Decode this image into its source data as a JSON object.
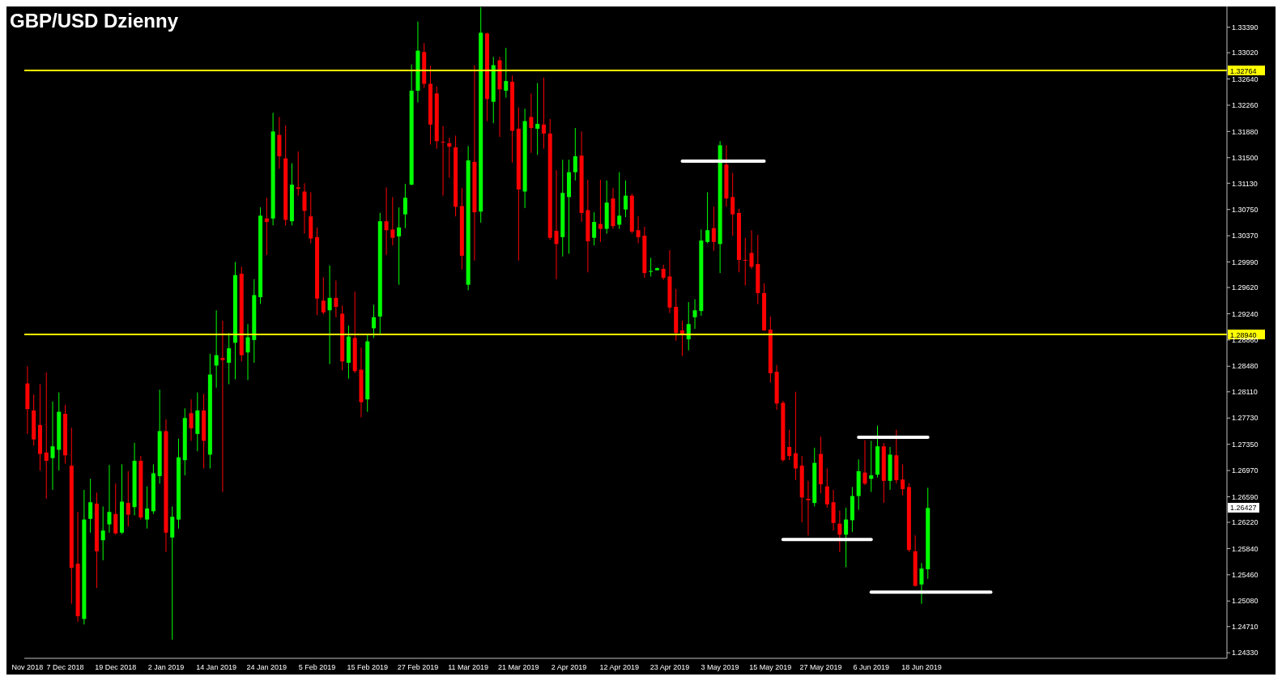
{
  "chart_data": {
    "type": "candlestick",
    "title": "GBP/USD Dzienny",
    "categories": [
      "Nov 2018",
      null,
      null,
      null,
      null,
      null,
      "7 Dec 2018",
      null,
      null,
      null,
      null,
      null,
      null,
      null,
      "19 Dec 2018",
      null,
      null,
      null,
      null,
      null,
      null,
      null,
      "2 Jan 2019",
      null,
      null,
      null,
      null,
      null,
      null,
      null,
      "14 Jan 2019",
      null,
      null,
      null,
      null,
      null,
      null,
      null,
      "24 Jan 2019",
      null,
      null,
      null,
      null,
      null,
      null,
      null,
      "5 Feb 2019",
      null,
      null,
      null,
      null,
      null,
      null,
      null,
      "15 Feb 2019",
      null,
      null,
      null,
      null,
      null,
      null,
      null,
      "27 Feb 2019",
      null,
      null,
      null,
      null,
      null,
      null,
      null,
      "11 Mar 2019",
      null,
      null,
      null,
      null,
      null,
      null,
      null,
      "21 Mar 2019",
      null,
      null,
      null,
      null,
      null,
      null,
      null,
      "2 Apr 2019",
      null,
      null,
      null,
      null,
      null,
      null,
      null,
      "12 Apr 2019",
      null,
      null,
      null,
      null,
      null,
      null,
      null,
      "23 Apr 2019",
      null,
      null,
      null,
      null,
      null,
      null,
      null,
      "3 May 2019",
      null,
      null,
      null,
      null,
      null,
      null,
      null,
      "15 May 2019",
      null,
      null,
      null,
      null,
      null,
      null,
      null,
      "27 May 2019",
      null,
      null,
      null,
      null,
      null,
      null,
      null,
      "6 Jun 2019",
      null,
      null,
      null,
      null,
      null,
      null,
      null,
      "18 Jun 2019",
      null,
      null,
      null,
      null,
      null,
      null,
      null,
      null,
      null,
      null,
      null,
      null,
      null,
      null,
      null,
      null,
      null,
      null,
      null,
      null,
      null,
      null,
      null,
      null,
      null,
      null,
      null,
      null,
      null,
      null,
      null,
      null,
      null,
      null,
      null,
      null,
      null,
      null,
      null,
      null,
      null,
      null,
      null,
      null,
      null,
      null,
      null,
      null
    ],
    "ohlc": [
      [
        1.2823,
        1.2848,
        1.275,
        1.2786
      ],
      [
        1.2784,
        1.2807,
        1.2733,
        1.2742
      ],
      [
        1.2763,
        1.2822,
        1.2697,
        1.2721
      ],
      [
        1.2723,
        1.2839,
        1.2656,
        1.2711
      ],
      [
        1.2715,
        1.2797,
        1.2669,
        1.2732
      ],
      [
        1.2727,
        1.281,
        1.2697,
        1.2782
      ],
      [
        1.2779,
        1.2792,
        1.2707,
        1.2719
      ],
      [
        1.2704,
        1.2759,
        1.2504,
        1.2556
      ],
      [
        1.2562,
        1.2637,
        1.2478,
        1.2486
      ],
      [
        1.2482,
        1.2669,
        1.2474,
        1.2626
      ],
      [
        1.2627,
        1.2685,
        1.2607,
        1.2651
      ],
      [
        1.2649,
        1.2665,
        1.2527,
        1.258
      ],
      [
        1.2596,
        1.2645,
        1.2567,
        1.261
      ],
      [
        1.2619,
        1.2705,
        1.2607,
        1.2637
      ],
      [
        1.2634,
        1.2678,
        1.2604,
        1.2606
      ],
      [
        1.2607,
        1.2706,
        1.2605,
        1.2652
      ],
      [
        1.265,
        1.2696,
        1.2616,
        1.2633
      ],
      [
        1.2644,
        1.2737,
        1.2632,
        1.2711
      ],
      [
        1.2711,
        1.2718,
        1.2626,
        1.2629
      ],
      [
        1.2626,
        1.2674,
        1.2613,
        1.2642
      ],
      [
        1.2638,
        1.2706,
        1.2634,
        1.2693
      ],
      [
        1.2689,
        1.2814,
        1.2678,
        1.2754
      ],
      [
        1.2754,
        1.2771,
        1.2579,
        1.2607
      ],
      [
        1.26,
        1.2645,
        1.2452,
        1.263
      ],
      [
        1.2626,
        1.2743,
        1.2613,
        1.2716
      ],
      [
        1.2712,
        1.2787,
        1.269,
        1.2773
      ],
      [
        1.278,
        1.28,
        1.274,
        1.2758
      ],
      [
        1.275,
        1.281,
        1.2725,
        1.2784
      ],
      [
        1.2784,
        1.2808,
        1.27,
        1.274
      ],
      [
        1.272,
        1.2866,
        1.27,
        1.2836
      ],
      [
        1.2849,
        1.2929,
        1.2817,
        1.2864
      ],
      [
        1.286,
        1.2914,
        1.2666,
        1.2857
      ],
      [
        1.2853,
        1.2896,
        1.2822,
        1.2874
      ],
      [
        1.2882,
        1.2999,
        1.2829,
        1.298
      ],
      [
        1.2982,
        1.2992,
        1.2855,
        1.2864
      ],
      [
        1.2868,
        1.2909,
        1.2828,
        1.289
      ],
      [
        1.2886,
        1.2974,
        1.2853,
        1.2951
      ],
      [
        1.2948,
        1.3078,
        1.2938,
        1.3066
      ],
      [
        1.3062,
        1.3092,
        1.3009,
        1.3057
      ],
      [
        1.3062,
        1.3215,
        1.3052,
        1.3188
      ],
      [
        1.3183,
        1.3209,
        1.3134,
        1.3152
      ],
      [
        1.3149,
        1.3197,
        1.3052,
        1.306
      ],
      [
        1.3058,
        1.3142,
        1.3052,
        1.3111
      ],
      [
        1.3107,
        1.3159,
        1.3095,
        1.3105
      ],
      [
        1.3101,
        1.3113,
        1.304,
        1.3073
      ],
      [
        1.3065,
        1.31,
        1.3026,
        1.3033
      ],
      [
        1.3035,
        1.3049,
        1.2922,
        1.2946
      ],
      [
        1.2943,
        1.2977,
        1.2923,
        1.2926
      ],
      [
        1.2929,
        1.2994,
        1.2851,
        1.2947
      ],
      [
        1.2947,
        1.2972,
        1.2919,
        1.2934
      ],
      [
        1.2924,
        1.2936,
        1.2842,
        1.2855
      ],
      [
        1.2853,
        1.2907,
        1.283,
        1.2891
      ],
      [
        1.2889,
        1.2956,
        1.2838,
        1.2841
      ],
      [
        1.2843,
        1.2875,
        1.2774,
        1.2796
      ],
      [
        1.28,
        1.2894,
        1.2782,
        1.2884
      ],
      [
        1.2903,
        1.2937,
        1.2889,
        1.2919
      ],
      [
        1.292,
        1.307,
        1.2893,
        1.3058
      ],
      [
        1.3058,
        1.3107,
        1.3009,
        1.3045
      ],
      [
        1.3046,
        1.3093,
        1.3023,
        1.3034
      ],
      [
        1.3036,
        1.3078,
        1.2966,
        1.3049
      ],
      [
        1.3068,
        1.3112,
        1.3048,
        1.3092
      ],
      [
        1.3111,
        1.3285,
        1.311,
        1.3247
      ],
      [
        1.3247,
        1.3347,
        1.323,
        1.3305
      ],
      [
        1.3303,
        1.3316,
        1.3251,
        1.3257
      ],
      [
        1.3257,
        1.3283,
        1.3169,
        1.3198
      ],
      [
        1.3243,
        1.3253,
        1.3163,
        1.3174
      ],
      [
        1.3173,
        1.3196,
        1.3095,
        1.3172
      ],
      [
        1.3171,
        1.3179,
        1.3121,
        1.3166
      ],
      [
        1.3165,
        1.3182,
        1.3065,
        1.3079
      ],
      [
        1.308,
        1.3106,
        1.2988,
        1.3008
      ],
      [
        1.2966,
        1.3167,
        1.2958,
        1.3146
      ],
      [
        1.3144,
        1.3284,
        1.3001,
        1.3071
      ],
      [
        1.3072,
        1.3368,
        1.3056,
        1.3331
      ],
      [
        1.333,
        1.3331,
        1.3203,
        1.3235
      ],
      [
        1.3231,
        1.3296,
        1.32,
        1.3284
      ],
      [
        1.3291,
        1.3296,
        1.318,
        1.3249
      ],
      [
        1.3247,
        1.3309,
        1.3237,
        1.3261
      ],
      [
        1.326,
        1.3269,
        1.3143,
        1.3189
      ],
      [
        1.3192,
        1.3223,
        1.3001,
        1.3104
      ],
      [
        1.3101,
        1.3221,
        1.3077,
        1.3203
      ],
      [
        1.3209,
        1.3243,
        1.3157,
        1.3193
      ],
      [
        1.3192,
        1.3258,
        1.3154,
        1.3199
      ],
      [
        1.3198,
        1.3266,
        1.3163,
        1.3185
      ],
      [
        1.3185,
        1.3206,
        1.3031,
        1.3034
      ],
      [
        1.3044,
        1.3132,
        1.2974,
        1.3025
      ],
      [
        1.3035,
        1.3147,
        1.3007,
        1.3099
      ],
      [
        1.3093,
        1.3147,
        1.3011,
        1.3129
      ],
      [
        1.3129,
        1.3193,
        1.3117,
        1.3152
      ],
      [
        1.3153,
        1.3188,
        1.3057,
        1.307
      ],
      [
        1.3074,
        1.3118,
        1.2984,
        1.3029
      ],
      [
        1.3034,
        1.3071,
        1.3023,
        1.3057
      ],
      [
        1.3054,
        1.3118,
        1.3028,
        1.3047
      ],
      [
        1.3047,
        1.3117,
        1.304,
        1.3085
      ],
      [
        1.3091,
        1.3106,
        1.3047,
        1.3051
      ],
      [
        1.3053,
        1.3129,
        1.3047,
        1.3066
      ],
      [
        1.3075,
        1.3117,
        1.3064,
        1.3095
      ],
      [
        1.3095,
        1.3098,
        1.304,
        1.3043
      ],
      [
        1.3045,
        1.3065,
        1.3026,
        1.3035
      ],
      [
        1.3037,
        1.305,
        1.2976,
        1.2983
      ],
      [
        1.2985,
        1.3005,
        1.2978,
        1.2986
      ],
      [
        1.2987,
        1.2991,
        1.2987,
        1.299
      ],
      [
        1.2989,
        1.2995,
        1.2973,
        1.2976
      ],
      [
        1.2978,
        1.3016,
        1.2925,
        1.2933
      ],
      [
        1.2934,
        1.296,
        1.2885,
        1.2896
      ],
      [
        1.29,
        1.2914,
        1.2863,
        1.2894
      ],
      [
        1.2887,
        1.2941,
        1.2871,
        1.2909
      ],
      [
        1.2919,
        1.2945,
        1.2902,
        1.2929
      ],
      [
        1.2928,
        1.3046,
        1.2921,
        1.303
      ],
      [
        1.3028,
        1.31,
        1.3026,
        1.3045
      ],
      [
        1.3048,
        1.3079,
        1.3015,
        1.3028
      ],
      [
        1.3025,
        1.3174,
        1.2983,
        1.3168
      ],
      [
        1.314,
        1.3168,
        1.3079,
        1.3091
      ],
      [
        1.3093,
        1.3128,
        1.3037,
        1.3068
      ],
      [
        1.307,
        1.3076,
        1.2984,
        1.3002
      ],
      [
        1.3002,
        1.3034,
        1.2965,
        1.3001
      ],
      [
        1.3012,
        1.3045,
        1.2989,
        1.2992
      ],
      [
        1.2996,
        1.3038,
        1.2938,
        1.2954
      ],
      [
        1.2954,
        1.2968,
        1.2899,
        1.29
      ],
      [
        1.2901,
        1.292,
        1.2824,
        1.2838
      ],
      [
        1.284,
        1.285,
        1.2785,
        1.2794
      ],
      [
        1.2795,
        1.2798,
        1.271,
        1.2712
      ],
      [
        1.2731,
        1.2756,
        1.2712,
        1.2718
      ],
      [
        1.2722,
        1.2811,
        1.2683,
        1.27
      ],
      [
        1.2704,
        1.2718,
        1.2622,
        1.2658
      ],
      [
        1.2656,
        1.2682,
        1.2603,
        1.2654
      ],
      [
        1.265,
        1.273,
        1.2645,
        1.2708
      ],
      [
        1.2721,
        1.2746,
        1.2664,
        1.2677
      ],
      [
        1.2674,
        1.27,
        1.2643,
        1.2648
      ],
      [
        1.2651,
        1.2669,
        1.261,
        1.2621
      ],
      [
        1.262,
        1.2639,
        1.2579,
        1.2604
      ],
      [
        1.2604,
        1.2643,
        1.2557,
        1.2626
      ],
      [
        1.2625,
        1.2673,
        1.2608,
        1.266
      ],
      [
        1.266,
        1.2713,
        1.264,
        1.2696
      ],
      [
        1.2694,
        1.2741,
        1.2676,
        1.2678
      ],
      [
        1.2685,
        1.274,
        1.2666,
        1.269
      ],
      [
        1.2691,
        1.2762,
        1.2687,
        1.2732
      ],
      [
        1.2732,
        1.2737,
        1.265,
        1.2682
      ],
      [
        1.2682,
        1.2731,
        1.2669,
        1.272
      ],
      [
        1.2719,
        1.2756,
        1.2678,
        1.2683
      ],
      [
        1.2684,
        1.2706,
        1.2661,
        1.267
      ],
      [
        1.2673,
        1.2679,
        1.2579,
        1.2582
      ],
      [
        1.258,
        1.2603,
        1.2529,
        1.253
      ],
      [
        1.2532,
        1.2563,
        1.2504,
        1.2555
      ],
      [
        1.2554,
        1.2672,
        1.254,
        1.26427
      ],
      null,
      null,
      null,
      null,
      null,
      null,
      null,
      null,
      null,
      null,
      null,
      null,
      null,
      null,
      null,
      null,
      null,
      null,
      null,
      null,
      null,
      null,
      null,
      null,
      null,
      null,
      null,
      null,
      null,
      null,
      null,
      null,
      null,
      null,
      null,
      null,
      null,
      null,
      null,
      null,
      null,
      null,
      null,
      null,
      null,
      null,
      null
    ],
    "colors": [
      "#ff0000",
      "#ff0000",
      "#ff0000",
      "#ff0000",
      "#00ff00",
      "#00ff00",
      "#ff0000",
      "#ff0000",
      "#ff0000",
      "#00ff00",
      "#00ff00",
      "#ff0000",
      "#00ff00",
      "#00ff00",
      "#ff0000",
      "#00ff00",
      "#ff0000",
      "#00ff00",
      "#ff0000",
      "#00ff00",
      "#00ff00",
      "#00ff00",
      "#ff0000",
      "#00ff00",
      "#00ff00",
      "#00ff00",
      "#ff0000",
      "#00ff00",
      "#ff0000",
      "#00ff00",
      "#00ff00",
      "#ff0000",
      "#00ff00",
      "#00ff00",
      "#ff0000",
      "#00ff00",
      "#00ff00",
      "#00ff00",
      "#ff0000",
      "#00ff00",
      "#ff0000",
      "#ff0000",
      "#00ff00",
      "#ff0000",
      "#ff0000",
      "#ff0000",
      "#ff0000",
      "#ff0000",
      "#00ff00",
      "#ff0000",
      "#ff0000",
      "#00ff00",
      "#ff0000",
      "#ff0000",
      "#00ff00",
      "#00ff00",
      "#00ff00",
      "#ff0000",
      "#ff0000",
      "#00ff00",
      "#00ff00",
      "#00ff00",
      "#00ff00",
      "#ff0000",
      "#ff0000",
      "#ff0000",
      "#ff0000",
      "#ff0000",
      "#ff0000",
      "#ff0000",
      "#00ff00",
      "#ff0000",
      "#00ff00",
      "#ff0000",
      "#00ff00",
      "#ff0000",
      "#00ff00",
      "#ff0000",
      "#ff0000",
      "#00ff00",
      "#ff0000",
      "#00ff00",
      "#ff0000",
      "#ff0000",
      "#ff0000",
      "#00ff00",
      "#00ff00",
      "#00ff00",
      "#ff0000",
      "#ff0000",
      "#00ff00",
      "#ff0000",
      "#00ff00",
      "#ff0000",
      "#00ff00",
      "#00ff00",
      "#ff0000",
      "#ff0000",
      "#ff0000",
      "#00ff00",
      "#00ff00",
      "#ff0000",
      "#ff0000",
      "#ff0000",
      "#ff0000",
      "#00ff00",
      "#00ff00",
      "#00ff00",
      "#00ff00",
      "#ff0000",
      "#00ff00",
      "#ff0000",
      "#ff0000",
      "#ff0000",
      "#ff0000",
      "#ff0000",
      "#ff0000",
      "#ff0000",
      "#ff0000",
      "#ff0000",
      "#ff0000",
      "#ff0000",
      "#ff0000",
      "#ff0000",
      "#ff0000",
      "#00ff00",
      "#ff0000",
      "#ff0000",
      "#ff0000",
      "#ff0000",
      "#00ff00",
      "#00ff00",
      "#00ff00",
      "#ff0000",
      "#00ff00",
      "#00ff00",
      "#ff0000",
      "#00ff00",
      "#ff0000",
      "#ff0000",
      "#ff0000",
      "#ff0000",
      "#00ff00",
      "#00ff00",
      null,
      null,
      null,
      null,
      null,
      null,
      null,
      null,
      null,
      null,
      null,
      null,
      null,
      null,
      null,
      null,
      null,
      null,
      null,
      null,
      null,
      null,
      null,
      null,
      null,
      null,
      null,
      null,
      null,
      null,
      null,
      null,
      null,
      null,
      null,
      null,
      null,
      null,
      null,
      null,
      null,
      null,
      null,
      null,
      null,
      null,
      null
    ],
    "series": [
      {
        "type": "line",
        "color": "#ffffff",
        "values": [
          null,
          null,
          null,
          null,
          null,
          null,
          null,
          null,
          null,
          null,
          null,
          null,
          null,
          null,
          null,
          null,
          null,
          null,
          null,
          null,
          null,
          null,
          null,
          null,
          null,
          null,
          null,
          null,
          null,
          null,
          null,
          null,
          null,
          null,
          null,
          null,
          null,
          null,
          null,
          null,
          null,
          null,
          null,
          null,
          null,
          null,
          null,
          null,
          null,
          null,
          null,
          null,
          null,
          null,
          null,
          null,
          null,
          null,
          null,
          null,
          null,
          null,
          null,
          null,
          null,
          null,
          null,
          null,
          null,
          null,
          null,
          null,
          null,
          null,
          null,
          null,
          null,
          null,
          null,
          null,
          null,
          null,
          null,
          null,
          null,
          null,
          null,
          null,
          null,
          null,
          null,
          null,
          null,
          null,
          null,
          null,
          null,
          null,
          null,
          null,
          null,
          null,
          null,
          null,
          1.3145,
          1.3145,
          1.3145,
          1.3145,
          1.3145,
          1.3145,
          1.3145,
          1.3145,
          1.3145,
          1.3145,
          1.3145,
          1.3145,
          1.3145,
          1.3145,
          null,
          null,
          null,
          null,
          null,
          null,
          null,
          null,
          null,
          null,
          null,
          null,
          null,
          null,
          null,
          null,
          null,
          null,
          null,
          null,
          null,
          null,
          null,
          null,
          null,
          null,
          null,
          null,
          null,
          null,
          null,
          null,
          null,
          null,
          null,
          null,
          null,
          null,
          null,
          null,
          null,
          null,
          null,
          null,
          null,
          null,
          null,
          null,
          null,
          null,
          null,
          null,
          null,
          null,
          null,
          null,
          null,
          null,
          null,
          null,
          null,
          null,
          null,
          null,
          null,
          null,
          null,
          null,
          null,
          null,
          null,
          null,
          null
        ]
      },
      {
        "type": "line",
        "color": "#ffffff",
        "values": [
          null,
          null,
          null,
          null,
          null,
          null,
          null,
          null,
          null,
          null,
          null,
          null,
          null,
          null,
          null,
          null,
          null,
          null,
          null,
          null,
          null,
          null,
          null,
          null,
          null,
          null,
          null,
          null,
          null,
          null,
          null,
          null,
          null,
          null,
          null,
          null,
          null,
          null,
          null,
          null,
          null,
          null,
          null,
          null,
          null,
          null,
          null,
          null,
          null,
          null,
          null,
          null,
          null,
          null,
          null,
          null,
          null,
          null,
          null,
          null,
          null,
          null,
          null,
          null,
          null,
          null,
          null,
          null,
          null,
          null,
          null,
          null,
          null,
          null,
          null,
          null,
          null,
          null,
          null,
          null,
          null,
          null,
          null,
          null,
          null,
          null,
          null,
          null,
          null,
          null,
          null,
          null,
          null,
          null,
          null,
          null,
          null,
          null,
          null,
          null,
          null,
          null,
          null,
          null,
          null,
          null,
          null,
          null,
          null,
          null,
          null,
          null,
          null,
          null,
          null,
          null,
          null,
          null,
          null,
          null,
          1.2597,
          1.2597,
          1.2597,
          1.2597,
          1.2597,
          1.2597,
          1.2597,
          1.2597,
          1.2597,
          1.2597,
          1.2597,
          1.2597,
          1.2597,
          1.2597,
          1.2597,
          null,
          null,
          null,
          null,
          null,
          null,
          null,
          null,
          null,
          null,
          null,
          null,
          null,
          null,
          null,
          null,
          null,
          null,
          null,
          null,
          null,
          null,
          null,
          null,
          null,
          null,
          null,
          null,
          null,
          null,
          null,
          null,
          null,
          null,
          null,
          null,
          null,
          null,
          null,
          null,
          null,
          null,
          null,
          null,
          null,
          null,
          null,
          null,
          null,
          null,
          null,
          null,
          null,
          null,
          null,
          null
        ]
      },
      {
        "type": "line",
        "color": "#ffffff",
        "values": [
          null,
          null,
          null,
          null,
          null,
          null,
          null,
          null,
          null,
          null,
          null,
          null,
          null,
          null,
          null,
          null,
          null,
          null,
          null,
          null,
          null,
          null,
          null,
          null,
          null,
          null,
          null,
          null,
          null,
          null,
          null,
          null,
          null,
          null,
          null,
          null,
          null,
          null,
          null,
          null,
          null,
          null,
          null,
          null,
          null,
          null,
          null,
          null,
          null,
          null,
          null,
          null,
          null,
          null,
          null,
          null,
          null,
          null,
          null,
          null,
          null,
          null,
          null,
          null,
          null,
          null,
          null,
          null,
          null,
          null,
          null,
          null,
          null,
          null,
          null,
          null,
          null,
          null,
          null,
          null,
          null,
          null,
          null,
          null,
          null,
          null,
          null,
          null,
          null,
          null,
          null,
          null,
          null,
          null,
          null,
          null,
          null,
          null,
          null,
          null,
          null,
          null,
          null,
          null,
          null,
          null,
          null,
          null,
          null,
          null,
          null,
          null,
          null,
          null,
          null,
          null,
          null,
          null,
          null,
          null,
          null,
          null,
          null,
          null,
          null,
          null,
          null,
          null,
          null,
          null,
          null,
          null,
          1.2745,
          1.2745,
          1.2745,
          1.2745,
          1.2745,
          1.2745,
          1.2745,
          1.2745,
          1.2745,
          1.2745,
          1.2745,
          1.2745,
          null,
          null,
          null,
          null,
          null,
          null,
          null,
          null,
          null,
          null,
          null,
          null,
          null,
          null,
          null,
          null,
          null,
          null,
          null,
          null,
          null,
          null,
          null,
          null,
          null,
          null,
          null,
          null,
          null,
          null,
          null,
          null,
          null,
          null,
          null,
          null,
          null,
          null,
          null,
          null,
          null,
          null,
          null,
          null,
          null,
          null,
          null
        ]
      },
      {
        "type": "line",
        "color": "#ffffff",
        "values": [
          null,
          null,
          null,
          null,
          null,
          null,
          null,
          null,
          null,
          null,
          null,
          null,
          null,
          null,
          null,
          null,
          null,
          null,
          null,
          null,
          null,
          null,
          null,
          null,
          null,
          null,
          null,
          null,
          null,
          null,
          null,
          null,
          null,
          null,
          null,
          null,
          null,
          null,
          null,
          null,
          null,
          null,
          null,
          null,
          null,
          null,
          null,
          null,
          null,
          null,
          null,
          null,
          null,
          null,
          null,
          null,
          null,
          null,
          null,
          null,
          null,
          null,
          null,
          null,
          null,
          null,
          null,
          null,
          null,
          null,
          null,
          null,
          null,
          null,
          null,
          null,
          null,
          null,
          null,
          null,
          null,
          null,
          null,
          null,
          null,
          null,
          null,
          null,
          null,
          null,
          null,
          null,
          null,
          null,
          null,
          null,
          null,
          null,
          null,
          null,
          null,
          null,
          null,
          null,
          null,
          null,
          null,
          null,
          null,
          null,
          null,
          null,
          null,
          null,
          null,
          null,
          null,
          null,
          null,
          null,
          null,
          null,
          null,
          null,
          null,
          null,
          null,
          null,
          null,
          null,
          null,
          null,
          null,
          null,
          1.2521,
          1.2521,
          1.2521,
          1.2521,
          1.2521,
          1.2521,
          1.2521,
          1.2521,
          1.2521,
          1.2521,
          1.2521,
          1.2521,
          1.2521,
          1.2521,
          1.2521,
          1.2521,
          1.2521,
          1.2521,
          1.2521,
          1.2521,
          null,
          null,
          null,
          null,
          null,
          null,
          null,
          null,
          null,
          null,
          null,
          null,
          null,
          null,
          null,
          null,
          null,
          null,
          null,
          null,
          null,
          null,
          null,
          null,
          null,
          null,
          null,
          null,
          null,
          null,
          null,
          null,
          null,
          null,
          null,
          null,
          null
        ]
      }
    ],
    "ylim": [
      1.2425,
      1.3369
    ],
    "yticks": [
      {
        "value": 1.2433,
        "label": "1.24330"
      },
      {
        "value": 1.2471,
        "label": "1.24710"
      },
      {
        "value": 1.2508,
        "label": "1.25080"
      },
      {
        "value": 1.2546,
        "label": "1.25460"
      },
      {
        "value": 1.2584,
        "label": "1.25840"
      },
      {
        "value": 1.2622,
        "label": "1.26220"
      },
      {
        "value": 1.2659,
        "label": "1.26590"
      },
      {
        "value": 1.2697,
        "label": "1.26970"
      },
      {
        "value": 1.2735,
        "label": "1.27350"
      },
      {
        "value": 1.2773,
        "label": "1.27730"
      },
      {
        "value": 1.2811,
        "label": "1.28110"
      },
      {
        "value": 1.2848,
        "label": "1.28480"
      },
      {
        "value": 1.2886,
        "label": "1.28860"
      },
      {
        "value": 1.2924,
        "label": "1.29240"
      },
      {
        "value": 1.2962,
        "label": "1.29620"
      },
      {
        "value": 1.2999,
        "label": "1.29990"
      },
      {
        "value": 1.3037,
        "label": "1.30370"
      },
      {
        "value": 1.3075,
        "label": "1.30750"
      },
      {
        "value": 1.3113,
        "label": "1.31130"
      },
      {
        "value": 1.315,
        "label": "1.31500"
      },
      {
        "value": 1.3188,
        "label": "1.31880"
      },
      {
        "value": 1.3226,
        "label": "1.32260"
      },
      {
        "value": 1.3264,
        "label": "1.32640"
      },
      {
        "value": 1.3302,
        "label": "1.33020"
      },
      {
        "value": 1.3339,
        "label": "1.33390"
      }
    ],
    "ref_lines": [
      {
        "axis": "y",
        "value": 1.32764,
        "label": "1.32764",
        "color": "#ffff00"
      },
      {
        "axis": "y",
        "value": 1.2894,
        "label": "1.28940",
        "color": "#ffff00"
      }
    ],
    "annotations": [
      {
        "text": "1.26427",
        "y": 1.26427
      }
    ]
  }
}
